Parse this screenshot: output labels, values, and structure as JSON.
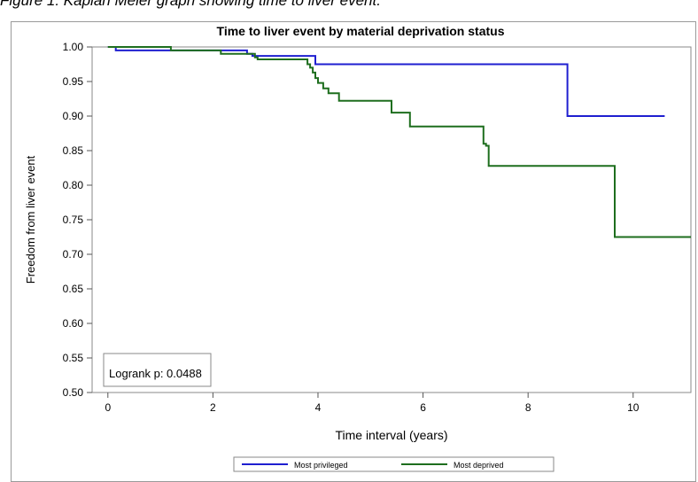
{
  "caption": "Figure 1: Kaplan Meier graph showing time to liver event.",
  "chart_data": {
    "type": "line",
    "title": "Time to liver event by material deprivation status",
    "xlabel": "Time interval (years)",
    "ylabel": "Freedom from liver event",
    "xlim": [
      -0.3,
      11.1
    ],
    "ylim": [
      0.5,
      1.0
    ],
    "x_ticks": [
      0,
      2,
      4,
      6,
      8,
      10
    ],
    "x_tick_labels": [
      "0",
      "2",
      "4",
      "6",
      "8",
      "10"
    ],
    "y_ticks": [
      0.5,
      0.55,
      0.6,
      0.65,
      0.7,
      0.75,
      0.8,
      0.85,
      0.9,
      0.95,
      1.0
    ],
    "y_tick_labels": [
      "0.50",
      "0.55",
      "0.60",
      "0.65",
      "0.70",
      "0.75",
      "0.80",
      "0.85",
      "0.90",
      "0.95",
      "1.00"
    ],
    "grid": false,
    "legend_position": "bottom",
    "annotation": "Logrank p: 0.0488",
    "series": [
      {
        "name": "Most privileged",
        "color": "#1f1fd0",
        "x": [
          0,
          0.15,
          2.65,
          2.75,
          3.9,
          3.95,
          8.75,
          10.6
        ],
        "y": [
          1.0,
          0.995,
          0.99,
          0.987,
          0.987,
          0.975,
          0.9,
          0.9
        ]
      },
      {
        "name": "Most deprived",
        "color": "#1e6e1e",
        "x": [
          0,
          1.2,
          2.15,
          2.8,
          2.85,
          3.8,
          3.85,
          3.9,
          3.95,
          4.0,
          4.1,
          4.2,
          4.4,
          5.4,
          5.75,
          7.15,
          7.2,
          7.25,
          9.65,
          11.1
        ],
        "y": [
          1.0,
          0.995,
          0.99,
          0.985,
          0.982,
          0.975,
          0.97,
          0.963,
          0.955,
          0.948,
          0.94,
          0.933,
          0.922,
          0.905,
          0.885,
          0.86,
          0.857,
          0.828,
          0.725,
          0.725
        ]
      }
    ]
  }
}
